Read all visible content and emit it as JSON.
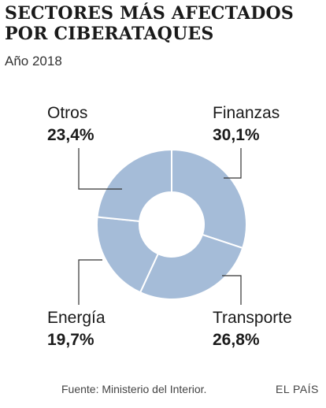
{
  "title_line1": "SECTORES MÁS AFECTADOS",
  "title_line2": "POR CIBERATAQUES",
  "subtitle": "Año 2018",
  "source": "Fuente: Ministerio del Interior.",
  "brand": "EL PAÍS",
  "colors": {
    "slice": "#a5bcd8",
    "separator": "#ffffff",
    "leader": "#333333"
  },
  "chart_data": {
    "type": "pie",
    "variant": "donut",
    "categories": [
      "Finanzas",
      "Transporte",
      "Energía",
      "Otros"
    ],
    "values": [
      30.1,
      26.8,
      19.7,
      23.4
    ],
    "value_labels": [
      "30,1%",
      "26,8%",
      "19,7%",
      "23,4%"
    ],
    "unit": "%"
  }
}
